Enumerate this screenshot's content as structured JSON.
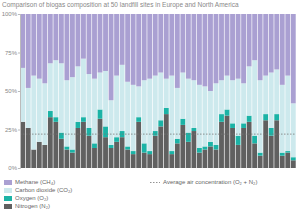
{
  "chart_data": {
    "type": "bar",
    "stacked": true,
    "title": "Comparison of biogas composition at 50 landfill sites in Europe and North America",
    "categories": [
      null,
      null,
      null,
      null,
      null,
      null,
      null,
      null,
      null,
      null,
      null,
      null,
      null,
      null,
      null,
      null,
      null,
      null,
      null,
      null,
      null,
      null,
      null,
      null,
      null,
      null,
      null,
      null,
      null,
      null,
      null,
      null,
      null,
      null,
      null,
      null,
      null,
      null,
      null,
      null,
      null,
      null,
      null,
      null,
      null,
      null,
      null,
      null,
      null,
      null
    ],
    "tick_labels": "y",
    "grid": false,
    "ylim": [
      0,
      100
    ],
    "yticks": [
      {
        "value": 0,
        "label": "0%"
      },
      {
        "value": 25,
        "label": "25%"
      },
      {
        "value": 50,
        "label": "50%"
      },
      {
        "value": 75,
        "label": "75%"
      },
      {
        "value": 100,
        "label": "100%"
      }
    ],
    "series": [
      {
        "name": "Nitrogen (N₂)",
        "color": "#606060",
        "values": [
          30,
          26,
          12,
          17,
          15,
          33,
          30,
          19,
          12,
          10,
          26,
          30,
          21,
          13,
          32,
          20,
          13,
          17,
          20,
          12,
          9,
          30,
          10,
          9,
          21,
          27,
          35,
          9,
          16,
          28,
          17,
          24,
          10,
          12,
          14,
          12,
          30,
          34,
          26,
          15,
          26,
          30,
          16,
          8,
          31,
          21,
          31,
          8,
          10,
          5
        ]
      },
      {
        "name": "Oxygen (O₂)",
        "color": "#1bb3a6",
        "values": [
          0,
          0,
          0,
          0,
          0,
          4,
          3,
          4,
          2,
          2,
          4,
          3,
          5,
          3,
          6,
          7,
          2,
          3,
          4,
          2,
          2,
          3,
          6,
          2,
          3,
          4,
          4,
          2,
          3,
          4,
          6,
          2,
          3,
          2,
          3,
          3,
          5,
          4,
          3,
          6,
          3,
          4,
          5,
          2,
          4,
          5,
          4,
          2,
          1,
          2
        ]
      },
      {
        "name": "Carbon dioxide (CO₂)",
        "color": "#cde9ed",
        "values": [
          35,
          26,
          48,
          41,
          40,
          31,
          37,
          45,
          43,
          47,
          36,
          38,
          35,
          42,
          24,
          36,
          29,
          40,
          43,
          42,
          43,
          20,
          41,
          47,
          36,
          31,
          19,
          49,
          33,
          30,
          35,
          31,
          41,
          39,
          33,
          40,
          22,
          22,
          28,
          37,
          26,
          32,
          49,
          47,
          25,
          36,
          29,
          44,
          49,
          35
        ]
      },
      {
        "name": "Methane (CH₄)",
        "color": "#aaa0d2",
        "values": [
          35,
          48,
          40,
          42,
          45,
          32,
          30,
          32,
          43,
          41,
          34,
          29,
          39,
          42,
          38,
          37,
          56,
          40,
          33,
          44,
          46,
          47,
          43,
          42,
          40,
          38,
          42,
          40,
          48,
          38,
          42,
          43,
          46,
          47,
          50,
          45,
          43,
          40,
          43,
          42,
          45,
          34,
          30,
          43,
          40,
          38,
          36,
          46,
          40,
          58
        ]
      }
    ],
    "annotations": [
      {
        "text": "Average air concentration (O₂ + N₂)",
        "value": 22,
        "line_style": "dotted"
      }
    ]
  }
}
